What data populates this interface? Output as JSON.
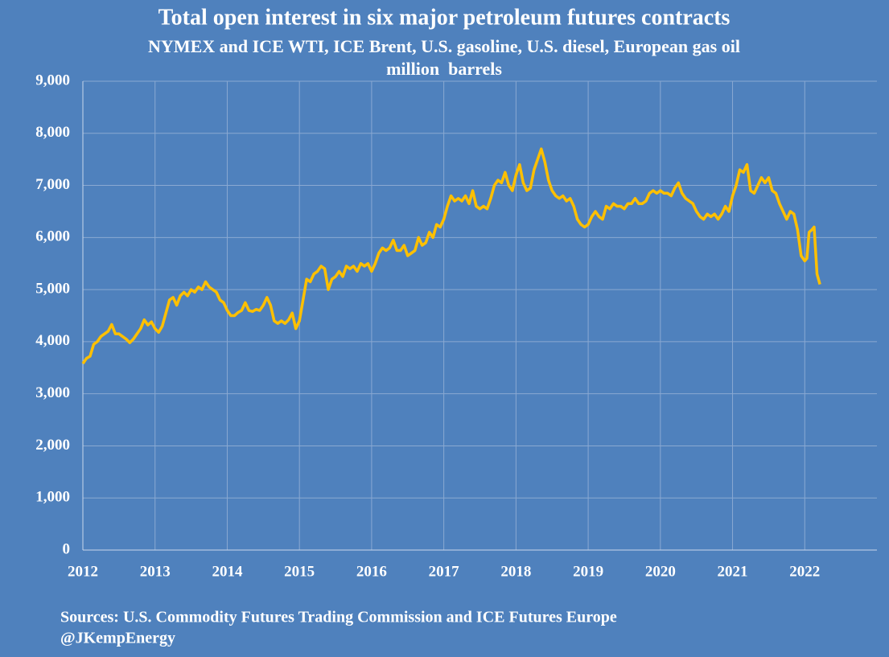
{
  "chart_data": {
    "type": "line",
    "title": "Total open interest in six major petroleum futures contracts",
    "subtitle": "NYMEX and ICE WTI, ICE Brent, U.S. gasoline, U.S. diesel, European gas oil",
    "y_label": "million  barrels",
    "source": "Sources: U.S. Commodity Futures Trading Commission and ICE Futures Europe",
    "credit": "@JKempEnergy",
    "xlim": [
      2012,
      2023
    ],
    "xticks": [
      2012,
      2013,
      2014,
      2015,
      2016,
      2017,
      2018,
      2019,
      2020,
      2021,
      2022
    ],
    "ylim": [
      0,
      9000
    ],
    "yticks": [
      0,
      {
        "value": 1000,
        "label": "1,000"
      },
      {
        "value": 2000,
        "label": "2,000"
      },
      {
        "value": 3000,
        "label": "3,000"
      },
      {
        "value": 4000,
        "label": "4,000"
      },
      {
        "value": 5000,
        "label": "5,000"
      },
      {
        "value": 6000,
        "label": "6,000"
      },
      {
        "value": 7000,
        "label": "7,000"
      },
      {
        "value": 8000,
        "label": "8,000"
      },
      {
        "value": 9000,
        "label": "9,000"
      }
    ],
    "grid": true,
    "x": [
      2012.0,
      2012.05,
      2012.1,
      2012.15,
      2012.2,
      2012.25,
      2012.3,
      2012.35,
      2012.4,
      2012.45,
      2012.5,
      2012.55,
      2012.6,
      2012.65,
      2012.7,
      2012.75,
      2012.8,
      2012.85,
      2012.9,
      2012.95,
      2013.0,
      2013.05,
      2013.1,
      2013.15,
      2013.2,
      2013.25,
      2013.3,
      2013.35,
      2013.4,
      2013.45,
      2013.5,
      2013.55,
      2013.6,
      2013.65,
      2013.7,
      2013.75,
      2013.8,
      2013.85,
      2013.9,
      2013.95,
      2014.0,
      2014.05,
      2014.1,
      2014.15,
      2014.2,
      2014.25,
      2014.3,
      2014.35,
      2014.4,
      2014.45,
      2014.5,
      2014.55,
      2014.6,
      2014.65,
      2014.7,
      2014.75,
      2014.8,
      2014.85,
      2014.9,
      2014.95,
      2015.0,
      2015.05,
      2015.1,
      2015.15,
      2015.2,
      2015.25,
      2015.3,
      2015.35,
      2015.4,
      2015.45,
      2015.5,
      2015.55,
      2015.6,
      2015.65,
      2015.7,
      2015.75,
      2015.8,
      2015.85,
      2015.9,
      2015.95,
      2016.0,
      2016.05,
      2016.1,
      2016.15,
      2016.2,
      2016.25,
      2016.3,
      2016.35,
      2016.4,
      2016.45,
      2016.5,
      2016.55,
      2016.6,
      2016.65,
      2016.7,
      2016.75,
      2016.8,
      2016.85,
      2016.9,
      2016.95,
      2017.0,
      2017.05,
      2017.1,
      2017.15,
      2017.2,
      2017.25,
      2017.3,
      2017.35,
      2017.4,
      2017.45,
      2017.5,
      2017.55,
      2017.6,
      2017.65,
      2017.7,
      2017.75,
      2017.8,
      2017.85,
      2017.9,
      2017.95,
      2018.0,
      2018.05,
      2018.1,
      2018.15,
      2018.2,
      2018.25,
      2018.3,
      2018.35,
      2018.4,
      2018.45,
      2018.5,
      2018.55,
      2018.6,
      2018.65,
      2018.7,
      2018.75,
      2018.8,
      2018.85,
      2018.9,
      2018.95,
      2019.0,
      2019.05,
      2019.1,
      2019.15,
      2019.2,
      2019.25,
      2019.3,
      2019.35,
      2019.4,
      2019.45,
      2019.5,
      2019.55,
      2019.6,
      2019.65,
      2019.7,
      2019.75,
      2019.8,
      2019.85,
      2019.9,
      2019.95,
      2020.0,
      2020.05,
      2020.1,
      2020.15,
      2020.2,
      2020.25,
      2020.3,
      2020.35,
      2020.4,
      2020.45,
      2020.5,
      2020.55,
      2020.6,
      2020.65,
      2020.7,
      2020.75,
      2020.8,
      2020.85,
      2020.9,
      2020.95,
      2021.0,
      2021.05,
      2021.1,
      2021.15,
      2021.2,
      2021.25,
      2021.3,
      2021.35,
      2021.4,
      2021.45,
      2021.5,
      2021.55,
      2021.6,
      2021.65,
      2021.7,
      2021.75,
      2021.8,
      2021.85,
      2021.9,
      2021.95,
      2022.0,
      2022.03,
      2022.06,
      2022.1,
      2022.13,
      2022.17,
      2022.21
    ],
    "series": [
      {
        "name": "Total open interest",
        "color": "#ffc000",
        "values": [
          3580,
          3680,
          3720,
          3950,
          4000,
          4100,
          4150,
          4200,
          4330,
          4150,
          4150,
          4100,
          4050,
          3980,
          4050,
          4150,
          4250,
          4420,
          4320,
          4380,
          4250,
          4180,
          4300,
          4550,
          4800,
          4850,
          4700,
          4880,
          4950,
          4880,
          5000,
          4950,
          5050,
          5000,
          5150,
          5050,
          5000,
          4950,
          4800,
          4750,
          4600,
          4500,
          4500,
          4560,
          4600,
          4750,
          4600,
          4580,
          4620,
          4600,
          4700,
          4850,
          4700,
          4400,
          4350,
          4400,
          4350,
          4420,
          4550,
          4250,
          4400,
          4800,
          5200,
          5150,
          5300,
          5350,
          5450,
          5400,
          5000,
          5200,
          5250,
          5350,
          5250,
          5450,
          5400,
          5450,
          5350,
          5500,
          5450,
          5500,
          5350,
          5500,
          5700,
          5800,
          5750,
          5800,
          5950,
          5750,
          5750,
          5850,
          5650,
          5700,
          5750,
          6000,
          5850,
          5900,
          6100,
          6000,
          6250,
          6200,
          6350,
          6600,
          6800,
          6700,
          6750,
          6700,
          6800,
          6650,
          6900,
          6600,
          6550,
          6600,
          6550,
          6750,
          7000,
          7100,
          7050,
          7250,
          7000,
          6900,
          7200,
          7400,
          7050,
          6900,
          6950,
          7300,
          7500,
          7700,
          7450,
          7100,
          6900,
          6800,
          6750,
          6800,
          6700,
          6750,
          6600,
          6350,
          6250,
          6200,
          6250,
          6400,
          6500,
          6400,
          6350,
          6600,
          6550,
          6650,
          6600,
          6600,
          6550,
          6650,
          6650,
          6750,
          6650,
          6650,
          6700,
          6850,
          6900,
          6850,
          6900,
          6850,
          6850,
          6800,
          6950,
          7050,
          6850,
          6750,
          6700,
          6650,
          6500,
          6400,
          6350,
          6450,
          6400,
          6450,
          6350,
          6450,
          6600,
          6500,
          6800,
          7000,
          7300,
          7250,
          7400,
          6900,
          6850,
          7000,
          7150,
          7050,
          7150,
          6900,
          6850,
          6650,
          6500,
          6350,
          6500,
          6450,
          6150,
          5650,
          5550,
          5600,
          6100,
          6150,
          6200,
          5300,
          5100
        ]
      }
    ]
  }
}
